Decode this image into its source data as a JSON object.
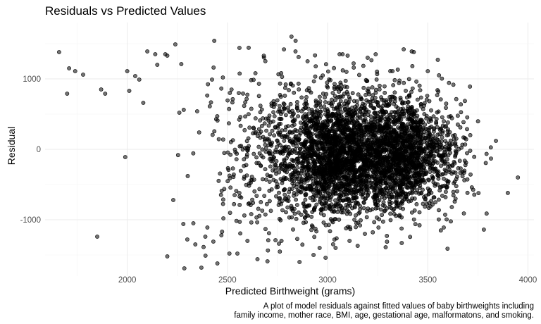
{
  "chart_data": {
    "type": "scatter",
    "title": "Residuals vs Predicted Values",
    "xlabel": "Predicted Birthweight (grams)",
    "ylabel": "Residual",
    "caption_lines": [
      "A plot of model residuals against fitted values of baby birthweights including",
      "family income, mother race, BMI, age, gestational age, malformatons, and smoking."
    ],
    "xlim": [
      1590,
      4030
    ],
    "ylim": [
      -1800,
      1800
    ],
    "x_ticks": [
      2000,
      2500,
      3000,
      3500,
      4000
    ],
    "x_tick_labels": [
      "2000",
      "2500",
      "3000",
      "3500",
      "4000"
    ],
    "y_ticks": [
      -1000,
      0,
      1000
    ],
    "y_tick_labels": [
      "-1000",
      "0",
      "1000"
    ],
    "grid": true,
    "legend": "none",
    "point_color": "#000000",
    "point_alpha": 0.55,
    "points": [
      [
        1660,
        1380
      ],
      [
        1700,
        790
      ],
      [
        1710,
        1150
      ],
      [
        1740,
        1110
      ],
      [
        1780,
        1060
      ],
      [
        1850,
        -1240
      ],
      [
        1870,
        850
      ],
      [
        1890,
        790
      ],
      [
        1990,
        -110
      ],
      [
        2000,
        1110
      ],
      [
        2010,
        830
      ],
      [
        2040,
        1040
      ],
      [
        2060,
        990
      ],
      [
        2080,
        660
      ],
      [
        2100,
        1390
      ],
      [
        2140,
        1350
      ],
      [
        2150,
        1200
      ],
      [
        2190,
        1350
      ],
      [
        2200,
        1330
      ],
      [
        2200,
        -1520
      ],
      [
        2230,
        -720
      ],
      [
        2240,
        1490
      ],
      [
        2260,
        520
      ],
      [
        2270,
        1210
      ],
      [
        2280,
        -1060
      ],
      [
        2285,
        -1690
      ],
      [
        2300,
        -1280
      ],
      [
        2330,
        -1050
      ],
      [
        2340,
        -1350
      ],
      [
        2370,
        -1680
      ],
      [
        2390,
        -1240
      ],
      [
        2400,
        -1110
      ],
      [
        2430,
        -1310
      ],
      [
        2450,
        -1620
      ],
      [
        2470,
        -1220
      ],
      [
        2480,
        -980
      ],
      [
        2510,
        -1480
      ],
      [
        2550,
        -1480
      ],
      [
        2560,
        1440
      ],
      [
        2600,
        -1300
      ],
      [
        2650,
        -1560
      ],
      [
        2700,
        -1590
      ],
      [
        2720,
        650
      ],
      [
        2740,
        -1290
      ],
      [
        2770,
        -1300
      ],
      [
        2820,
        1600
      ],
      [
        2840,
        1390
      ],
      [
        2860,
        -1600
      ],
      [
        2900,
        1250
      ],
      [
        2930,
        -1500
      ],
      [
        2960,
        -1400
      ],
      [
        2990,
        -1540
      ],
      [
        3040,
        -1400
      ],
      [
        3060,
        1350
      ],
      [
        3100,
        1330
      ],
      [
        3130,
        1220
      ],
      [
        3150,
        -1370
      ],
      [
        3200,
        1300
      ],
      [
        3240,
        1350
      ],
      [
        3290,
        -1390
      ],
      [
        3370,
        -1330
      ],
      [
        3380,
        1420
      ],
      [
        3420,
        1390
      ],
      [
        3500,
        1110
      ],
      [
        3580,
        -1110
      ],
      [
        3620,
        -820
      ],
      [
        3680,
        -910
      ],
      [
        3720,
        -540
      ],
      [
        3780,
        -1140
      ],
      [
        3840,
        120
      ],
      [
        3950,
        -400
      ]
    ],
    "dense_cloud": [
      {
        "cx": 3050,
        "cy": -100,
        "sx": 110,
        "sy": 380,
        "n": 1100
      },
      {
        "cx": 3350,
        "cy": -80,
        "sx": 110,
        "sy": 380,
        "n": 1100
      },
      {
        "cx": 3190,
        "cy": 0,
        "sx": 190,
        "sy": 460,
        "n": 1100
      },
      {
        "cx": 2900,
        "cy": -20,
        "sx": 160,
        "sy": 520,
        "n": 500
      },
      {
        "cx": 2650,
        "cy": 0,
        "sx": 170,
        "sy": 560,
        "n": 200
      },
      {
        "cx": 3560,
        "cy": -120,
        "sx": 100,
        "sy": 380,
        "n": 220
      }
    ]
  }
}
